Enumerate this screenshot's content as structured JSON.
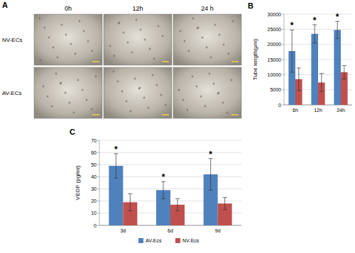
{
  "panel_a": {
    "label": "A",
    "columns": [
      "0h",
      "12h",
      "24 h"
    ],
    "rows": [
      "NV-ECs",
      "AV-ECs"
    ]
  },
  "chart_data": [
    {
      "type": "bar",
      "title": "B",
      "y_label": "Tube length(μm)",
      "categories": [
        "6h",
        "12h",
        "24h"
      ],
      "series": [
        {
          "color": "#4f81bd",
          "values": [
            17800,
            23500,
            24800
          ],
          "errors": [
            7000,
            3000,
            2800
          ],
          "annotations": [
            "*",
            "*",
            "*"
          ]
        },
        {
          "color": "#c0504d",
          "values": [
            8500,
            7400,
            10800
          ],
          "errors": [
            3700,
            3000,
            2200
          ]
        }
      ],
      "ylim": [
        0,
        30000
      ],
      "yticks": [
        0,
        5000,
        10000,
        15000,
        20000,
        25000,
        30000
      ],
      "grid": true
    },
    {
      "type": "bar",
      "title": "C",
      "y_label": "VEGF (pg/ml)",
      "categories": [
        "3d",
        "6d",
        "9d"
      ],
      "series": [
        {
          "name": "AV-Ecs",
          "color": "#4f81bd",
          "values": [
            49,
            29,
            42
          ],
          "errors": [
            10,
            7,
            13
          ],
          "annotations": [
            "*",
            "*",
            "*"
          ]
        },
        {
          "name": "NV-Ecs",
          "color": "#c0504d",
          "values": [
            19,
            17,
            18
          ],
          "errors": [
            7,
            5,
            5
          ]
        }
      ],
      "ylim": [
        0,
        70
      ],
      "yticks": [
        0,
        10,
        20,
        30,
        40,
        50,
        60,
        70
      ],
      "grid": true,
      "legend": "bottom"
    }
  ]
}
